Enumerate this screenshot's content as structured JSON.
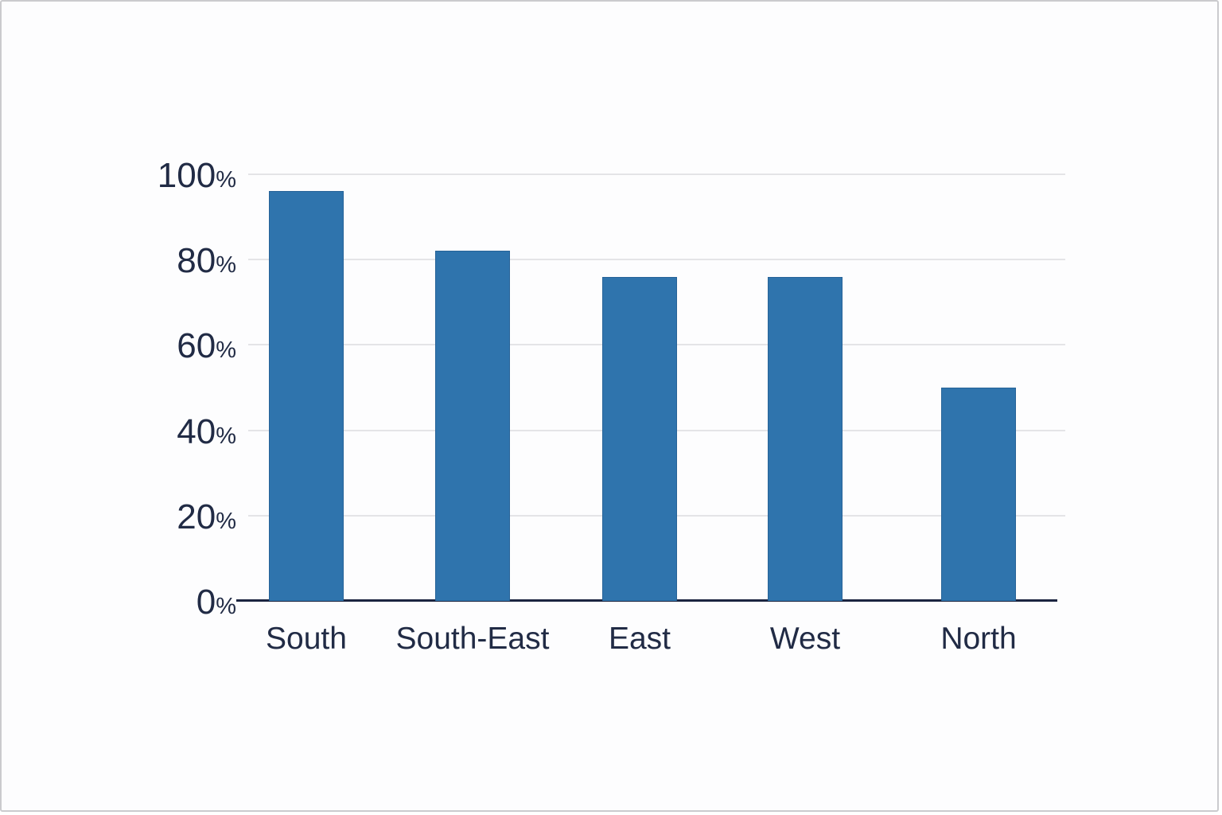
{
  "chart_data": {
    "type": "bar",
    "title": "",
    "xlabel": "",
    "ylabel": "",
    "categories": [
      "South",
      "South-East",
      "East",
      "West",
      "North"
    ],
    "values": [
      96,
      82,
      76,
      76,
      50
    ],
    "value_unit": "%",
    "ylim": [
      0,
      100
    ],
    "yticks": [
      0,
      20,
      40,
      60,
      80,
      100
    ],
    "ytick_suffix": "%",
    "grid": true,
    "legend": "none",
    "colors": {
      "bar": "#2f74ad",
      "bar_border": "rgba(25,70,115,0.35)",
      "gridline": "#e4e4e7",
      "axis_line": "#1b2440",
      "tick_text": "#212b45",
      "background": "#fdfdfe",
      "frame_border": "#cbcbce"
    }
  }
}
